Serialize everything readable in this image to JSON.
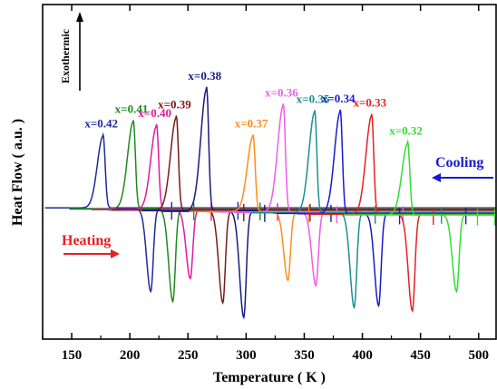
{
  "chart_data": {
    "type": "line",
    "xlabel": "Temperature ( K )",
    "ylabel": "Heat Flow ( a.u. )",
    "xlim": [
      125,
      515
    ],
    "ylim": [
      -1.3,
      1.3
    ],
    "xticks": [
      150,
      200,
      250,
      300,
      350,
      400,
      450,
      500
    ],
    "grid": false,
    "annotations": {
      "exothermic": "Exothermic",
      "cooling": "Cooling",
      "heating": "Heating",
      "cooling_color": "#1a1acc",
      "heating_color": "#e62020"
    },
    "series": [
      {
        "name": "x=0.42",
        "color": "#1f2a9c",
        "cooling_peak_T": 177,
        "cooling_peak_h": 0.62,
        "heating_peak_T": 218,
        "heating_peak_h": 0.7
      },
      {
        "name": "x=0.41",
        "color": "#1f8a1f",
        "cooling_peak_T": 203,
        "cooling_peak_h": 0.75,
        "heating_peak_T": 237,
        "heating_peak_h": 0.78
      },
      {
        "name": "x=0.40",
        "color": "#e01aa0",
        "cooling_peak_T": 223,
        "cooling_peak_h": 0.72,
        "heating_peak_T": 252,
        "heating_peak_h": 0.58
      },
      {
        "name": "x=0.39",
        "color": "#7a1a1a",
        "cooling_peak_T": 240,
        "cooling_peak_h": 0.8,
        "heating_peak_T": 280,
        "heating_peak_h": 0.78
      },
      {
        "name": "x=0.38",
        "color": "#1a1a80",
        "cooling_peak_T": 266,
        "cooling_peak_h": 1.05,
        "heating_peak_T": 298,
        "heating_peak_h": 0.9
      },
      {
        "name": "x=0.37",
        "color": "#ff8c1a",
        "cooling_peak_T": 306,
        "cooling_peak_h": 0.65,
        "heating_peak_T": 336,
        "heating_peak_h": 0.58
      },
      {
        "name": "x=0.36",
        "color": "#f05ce6",
        "cooling_peak_T": 332,
        "cooling_peak_h": 0.92,
        "heating_peak_T": 360,
        "heating_peak_h": 0.62
      },
      {
        "name": "x=0.35",
        "color": "#1a9090",
        "cooling_peak_T": 359,
        "cooling_peak_h": 0.87,
        "heating_peak_T": 393,
        "heating_peak_h": 0.8
      },
      {
        "name": "x=0.34",
        "color": "#1a1acc",
        "cooling_peak_T": 381,
        "cooling_peak_h": 0.88,
        "heating_peak_T": 414,
        "heating_peak_h": 0.78
      },
      {
        "name": "x=0.33",
        "color": "#e62020",
        "cooling_peak_T": 408,
        "cooling_peak_h": 0.85,
        "heating_peak_T": 443,
        "heating_peak_h": 0.82
      },
      {
        "name": "x=0.32",
        "color": "#33dd33",
        "cooling_peak_T": 439,
        "cooling_peak_h": 0.62,
        "heating_peak_T": 481,
        "heating_peak_h": 0.65
      }
    ]
  }
}
